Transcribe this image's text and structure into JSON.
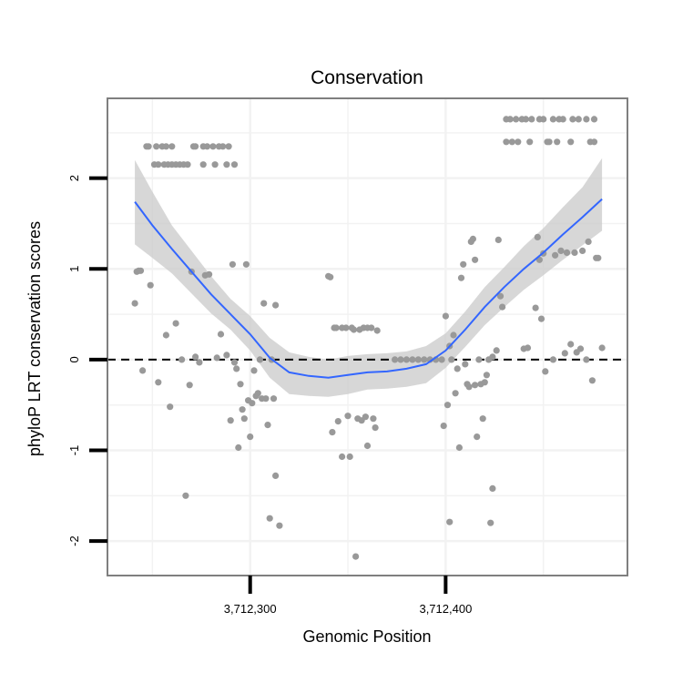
{
  "chart_data": {
    "type": "scatter",
    "title": "Conservation",
    "xlabel": "Genomic Position",
    "ylabel": "phyloP LRT conservation scores",
    "xlim": [
      3712227,
      3712493
    ],
    "ylim": [
      -2.38,
      2.88
    ],
    "x_ticks": [
      3712300,
      3712400
    ],
    "x_tick_labels": [
      "3,712,300",
      "3,712,400"
    ],
    "y_ticks": [
      -2,
      -1,
      0,
      1,
      2
    ],
    "y_tick_labels": [
      "-2",
      "-1",
      "0",
      "1",
      "2"
    ],
    "grid": true,
    "reference_line": {
      "y": 0,
      "style": "dashed"
    },
    "series": [
      {
        "name": "phyloP score",
        "kind": "points",
        "color": "#999999",
        "points": [
          [
            3712241,
            0.62
          ],
          [
            3712242,
            0.97
          ],
          [
            3712243,
            0.98
          ],
          [
            3712244,
            0.98
          ],
          [
            3712245,
            -0.12
          ],
          [
            3712247,
            2.35
          ],
          [
            3712248,
            2.35
          ],
          [
            3712249,
            0.82
          ],
          [
            3712251,
            2.15
          ],
          [
            3712252,
            2.35
          ],
          [
            3712253,
            2.15
          ],
          [
            3712253,
            -0.25
          ],
          [
            3712255,
            2.35
          ],
          [
            3712256,
            2.15
          ],
          [
            3712257,
            2.35
          ],
          [
            3712257,
            0.27
          ],
          [
            3712258,
            2.15
          ],
          [
            3712259,
            -0.52
          ],
          [
            3712260,
            2.35
          ],
          [
            3712260,
            2.15
          ],
          [
            3712262,
            2.15
          ],
          [
            3712262,
            0.4
          ],
          [
            3712264,
            2.15
          ],
          [
            3712265,
            0.0
          ],
          [
            3712266,
            2.15
          ],
          [
            3712267,
            -1.5
          ],
          [
            3712268,
            2.15
          ],
          [
            3712269,
            -0.28
          ],
          [
            3712270,
            0.97
          ],
          [
            3712271,
            2.35
          ],
          [
            3712272,
            2.35
          ],
          [
            3712272,
            0.03
          ],
          [
            3712274,
            -0.03
          ],
          [
            3712276,
            2.35
          ],
          [
            3712276,
            2.15
          ],
          [
            3712277,
            0.93
          ],
          [
            3712278,
            2.35
          ],
          [
            3712279,
            0.94
          ],
          [
            3712281,
            2.35
          ],
          [
            3712282,
            2.15
          ],
          [
            3712283,
            0.02
          ],
          [
            3712284,
            2.35
          ],
          [
            3712285,
            0.28
          ],
          [
            3712286,
            2.35
          ],
          [
            3712288,
            2.15
          ],
          [
            3712288,
            0.05
          ],
          [
            3712289,
            2.35
          ],
          [
            3712290,
            -0.67
          ],
          [
            3712291,
            1.05
          ],
          [
            3712292,
            2.15
          ],
          [
            3712292,
            -0.03
          ],
          [
            3712293,
            -0.1
          ],
          [
            3712294,
            -0.97
          ],
          [
            3712295,
            -0.27
          ],
          [
            3712296,
            -0.55
          ],
          [
            3712297,
            -0.65
          ],
          [
            3712298,
            1.05
          ],
          [
            3712299,
            -0.45
          ],
          [
            3712300,
            -0.85
          ],
          [
            3712301,
            -0.48
          ],
          [
            3712302,
            -0.12
          ],
          [
            3712303,
            -0.4
          ],
          [
            3712304,
            -0.37
          ],
          [
            3712305,
            0.0
          ],
          [
            3712306,
            -0.43
          ],
          [
            3712307,
            0.62
          ],
          [
            3712308,
            -0.43
          ],
          [
            3712309,
            -0.72
          ],
          [
            3712310,
            -1.75
          ],
          [
            3712311,
            0.0
          ],
          [
            3712312,
            -0.43
          ],
          [
            3712313,
            0.6
          ],
          [
            3712313,
            -1.28
          ],
          [
            3712315,
            -1.83
          ],
          [
            3712340,
            0.92
          ],
          [
            3712341,
            0.91
          ],
          [
            3712342,
            -0.8
          ],
          [
            3712343,
            0.35
          ],
          [
            3712344,
            0.35
          ],
          [
            3712345,
            -0.68
          ],
          [
            3712347,
            0.35
          ],
          [
            3712347,
            -1.07
          ],
          [
            3712349,
            0.35
          ],
          [
            3712350,
            -0.62
          ],
          [
            3712351,
            -1.07
          ],
          [
            3712352,
            0.35
          ],
          [
            3712353,
            0.33
          ],
          [
            3712354,
            -2.17
          ],
          [
            3712355,
            -0.65
          ],
          [
            3712356,
            0.33
          ],
          [
            3712357,
            -0.67
          ],
          [
            3712358,
            0.35
          ],
          [
            3712359,
            -0.63
          ],
          [
            3712360,
            0.35
          ],
          [
            3712360,
            -0.95
          ],
          [
            3712362,
            0.35
          ],
          [
            3712363,
            -0.65
          ],
          [
            3712364,
            -0.75
          ],
          [
            3712365,
            0.32
          ],
          [
            3712374,
            0.0
          ],
          [
            3712377,
            0.0
          ],
          [
            3712380,
            0.0
          ],
          [
            3712383,
            0.0
          ],
          [
            3712386,
            0.0
          ],
          [
            3712389,
            0.0
          ],
          [
            3712392,
            0.0
          ],
          [
            3712395,
            0.0
          ],
          [
            3712398,
            0.0
          ],
          [
            3712399,
            -0.73
          ],
          [
            3712400,
            0.48
          ],
          [
            3712401,
            -0.5
          ],
          [
            3712402,
            0.15
          ],
          [
            3712402,
            -1.79
          ],
          [
            3712403,
            0.0
          ],
          [
            3712404,
            0.27
          ],
          [
            3712405,
            -0.37
          ],
          [
            3712406,
            -0.1
          ],
          [
            3712407,
            -0.97
          ],
          [
            3712408,
            0.9
          ],
          [
            3712409,
            1.05
          ],
          [
            3712410,
            -0.05
          ],
          [
            3712411,
            -0.27
          ],
          [
            3712412,
            -0.3
          ],
          [
            3712413,
            1.3
          ],
          [
            3712414,
            1.33
          ],
          [
            3712415,
            1.1
          ],
          [
            3712415,
            -0.28
          ],
          [
            3712416,
            -0.85
          ],
          [
            3712417,
            0.0
          ],
          [
            3712418,
            -0.27
          ],
          [
            3712419,
            -0.65
          ],
          [
            3712420,
            -0.25
          ],
          [
            3712421,
            -0.17
          ],
          [
            3712422,
            0.0
          ],
          [
            3712423,
            -1.8
          ],
          [
            3712424,
            0.03
          ],
          [
            3712424,
            -1.42
          ],
          [
            3712426,
            0.1
          ],
          [
            3712427,
            1.32
          ],
          [
            3712428,
            0.7
          ],
          [
            3712429,
            0.58
          ],
          [
            3712431,
            2.65
          ],
          [
            3712431,
            2.4
          ],
          [
            3712433,
            2.65
          ],
          [
            3712434,
            2.4
          ],
          [
            3712436,
            2.65
          ],
          [
            3712437,
            2.4
          ],
          [
            3712439,
            2.65
          ],
          [
            3712440,
            0.12
          ],
          [
            3712441,
            2.65
          ],
          [
            3712442,
            0.13
          ],
          [
            3712443,
            2.4
          ],
          [
            3712444,
            2.65
          ],
          [
            3712446,
            0.57
          ],
          [
            3712447,
            1.35
          ],
          [
            3712448,
            2.65
          ],
          [
            3712448,
            1.1
          ],
          [
            3712449,
            0.45
          ],
          [
            3712450,
            2.65
          ],
          [
            3712450,
            1.17
          ],
          [
            3712451,
            -0.13
          ],
          [
            3712452,
            2.4
          ],
          [
            3712453,
            2.4
          ],
          [
            3712455,
            2.65
          ],
          [
            3712455,
            0.0
          ],
          [
            3712456,
            1.15
          ],
          [
            3712457,
            2.4
          ],
          [
            3712458,
            2.65
          ],
          [
            3712459,
            1.2
          ],
          [
            3712460,
            2.65
          ],
          [
            3712461,
            0.07
          ],
          [
            3712462,
            1.18
          ],
          [
            3712464,
            2.4
          ],
          [
            3712464,
            0.17
          ],
          [
            3712465,
            2.65
          ],
          [
            3712466,
            1.18
          ],
          [
            3712467,
            0.08
          ],
          [
            3712468,
            2.65
          ],
          [
            3712469,
            0.12
          ],
          [
            3712470,
            1.2
          ],
          [
            3712472,
            2.65
          ],
          [
            3712472,
            0.0
          ],
          [
            3712473,
            1.3
          ],
          [
            3712474,
            2.4
          ],
          [
            3712475,
            -0.23
          ],
          [
            3712476,
            2.4
          ],
          [
            3712476,
            2.65
          ],
          [
            3712477,
            1.12
          ],
          [
            3712478,
            1.12
          ],
          [
            3712480,
            0.13
          ]
        ]
      },
      {
        "name": "loess smooth",
        "kind": "line",
        "color": "#3366ff",
        "x": [
          3712241,
          3712250,
          3712260,
          3712270,
          3712280,
          3712290,
          3712300,
          3712310,
          3712320,
          3712330,
          3712340,
          3712350,
          3712360,
          3712370,
          3712380,
          3712390,
          3712400,
          3712410,
          3712420,
          3712430,
          3712440,
          3712450,
          3712460,
          3712470,
          3712480
        ],
        "y": [
          1.74,
          1.48,
          1.22,
          0.97,
          0.72,
          0.5,
          0.28,
          0.02,
          -0.14,
          -0.18,
          -0.2,
          -0.17,
          -0.14,
          -0.13,
          -0.1,
          -0.05,
          0.1,
          0.33,
          0.58,
          0.8,
          1.0,
          1.18,
          1.38,
          1.57,
          1.77
        ]
      },
      {
        "name": "confidence band",
        "kind": "band",
        "color": "#cccccc",
        "x": [
          3712241,
          3712250,
          3712260,
          3712270,
          3712280,
          3712290,
          3712300,
          3712310,
          3712320,
          3712330,
          3712340,
          3712350,
          3712360,
          3712370,
          3712380,
          3712390,
          3712400,
          3712410,
          3712420,
          3712430,
          3712440,
          3712450,
          3712460,
          3712470,
          3712480
        ],
        "lower": [
          1.27,
          1.12,
          0.95,
          0.73,
          0.51,
          0.33,
          0.1,
          -0.2,
          -0.38,
          -0.4,
          -0.41,
          -0.38,
          -0.33,
          -0.32,
          -0.3,
          -0.26,
          -0.09,
          0.14,
          0.38,
          0.58,
          0.77,
          0.93,
          1.1,
          1.26,
          1.42
        ],
        "upper": [
          2.2,
          1.85,
          1.48,
          1.2,
          0.92,
          0.67,
          0.48,
          0.24,
          0.08,
          0.03,
          0.0,
          0.04,
          0.06,
          0.07,
          0.09,
          0.15,
          0.29,
          0.53,
          0.8,
          1.02,
          1.25,
          1.45,
          1.68,
          1.9,
          2.22
        ]
      }
    ]
  }
}
